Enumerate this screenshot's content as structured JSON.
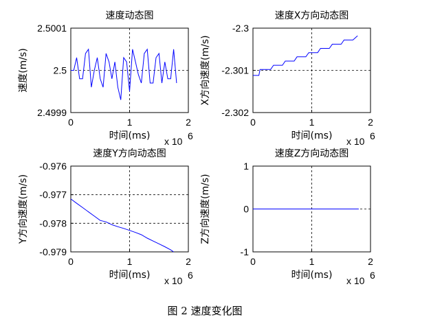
{
  "figure_caption": "图 2  速度变化图",
  "chart_data": [
    {
      "type": "line",
      "title": "速度动态图",
      "xlabel": "时间(ms)",
      "ylabel": "速度(m/s)",
      "x_exponent_label": "x 10",
      "x_exponent": "6",
      "xlim": [
        0,
        2
      ],
      "ylim": [
        2.4999,
        2.5001
      ],
      "xticks": [
        0,
        1,
        2
      ],
      "yticks": [
        2.4999,
        2.5,
        2.5001
      ],
      "ytick_labels": [
        "2.4999",
        "2.5",
        "2.5001"
      ],
      "grid": true,
      "series": [
        {
          "color": "#0000ff",
          "x": [
            0.0,
            0.05,
            0.1,
            0.15,
            0.2,
            0.25,
            0.3,
            0.35,
            0.4,
            0.45,
            0.5,
            0.55,
            0.6,
            0.65,
            0.7,
            0.75,
            0.8,
            0.85,
            0.9,
            0.95,
            1.0,
            1.05,
            1.1,
            1.15,
            1.2,
            1.25,
            1.3,
            1.35,
            1.4,
            1.45,
            1.5,
            1.55,
            1.6,
            1.65,
            1.7,
            1.75,
            1.8
          ],
          "values": [
            2.5,
            2.5,
            2.50003,
            2.49998,
            2.49998,
            2.50004,
            2.50005,
            2.49996,
            2.5,
            2.50003,
            2.49998,
            2.49996,
            2.50004,
            2.50002,
            2.49998,
            2.50002,
            2.49996,
            2.49993,
            2.50003,
            2.50002,
            2.49995,
            2.50005,
            2.50002,
            2.49999,
            2.49997,
            2.50004,
            2.50005,
            2.49997,
            2.49997,
            2.50003,
            2.50004,
            2.49997,
            2.50002,
            2.49998,
            2.49998,
            2.50005,
            2.49997
          ]
        }
      ]
    },
    {
      "type": "line",
      "title": "速度X方向动态图",
      "xlabel": "时间(ms)",
      "ylabel": "X方向速度(m/s)",
      "x_exponent_label": "x 10",
      "x_exponent": "6",
      "xlim": [
        0,
        2
      ],
      "ylim": [
        -2.302,
        -2.3
      ],
      "xticks": [
        0,
        1,
        2
      ],
      "yticks": [
        -2.302,
        -2.301,
        -2.3
      ],
      "ytick_labels": [
        "-2.302",
        "-2.301",
        "-2.3"
      ],
      "grid": true,
      "series": [
        {
          "color": "#0000ff",
          "x": [
            0.0,
            0.1,
            0.12,
            0.3,
            0.35,
            0.5,
            0.55,
            0.7,
            0.75,
            0.9,
            0.95,
            1.1,
            1.15,
            1.3,
            1.35,
            1.5,
            1.55,
            1.7,
            1.78
          ],
          "values": [
            -2.30112,
            -2.30112,
            -2.30098,
            -2.30098,
            -2.30088,
            -2.30088,
            -2.30078,
            -2.30078,
            -2.30068,
            -2.30068,
            -2.30058,
            -2.30058,
            -2.30048,
            -2.30048,
            -2.30038,
            -2.30038,
            -2.30028,
            -2.30028,
            -2.30018
          ]
        }
      ]
    },
    {
      "type": "line",
      "title": "速度Y方向动态图",
      "xlabel": "时间(ms)",
      "ylabel": "Y方向速度(m/s)",
      "x_exponent_label": "x 10",
      "x_exponent": "6",
      "xlim": [
        0,
        2
      ],
      "ylim": [
        -0.979,
        -0.976
      ],
      "xticks": [
        0,
        1,
        2
      ],
      "yticks": [
        -0.979,
        -0.978,
        -0.977,
        -0.976
      ],
      "ytick_labels": [
        "-0.979",
        "-0.978",
        "-0.977",
        "-0.976"
      ],
      "grid": true,
      "series": [
        {
          "color": "#0000ff",
          "x": [
            0.0,
            0.1,
            0.2,
            0.3,
            0.4,
            0.5,
            0.6,
            0.7,
            0.8,
            0.9,
            1.0,
            1.1,
            1.2,
            1.3,
            1.4,
            1.5,
            1.6,
            1.7,
            1.75
          ],
          "values": [
            -0.97715,
            -0.9773,
            -0.97745,
            -0.9776,
            -0.97775,
            -0.9779,
            -0.97795,
            -0.97805,
            -0.97812,
            -0.97818,
            -0.97825,
            -0.97832,
            -0.9784,
            -0.97852,
            -0.97862,
            -0.97872,
            -0.97882,
            -0.97893,
            -0.979
          ]
        }
      ]
    },
    {
      "type": "line",
      "title": "速度Z方向动态图",
      "xlabel": "时间(ms)",
      "ylabel": "Z方向速度(m/s)",
      "x_exponent_label": "x 10",
      "x_exponent": "6",
      "xlim": [
        0,
        2
      ],
      "ylim": [
        -1,
        1
      ],
      "xticks": [
        0,
        1,
        2
      ],
      "yticks": [
        -1,
        0,
        1
      ],
      "ytick_labels": [
        "-1",
        "0",
        "1"
      ],
      "grid": true,
      "series": [
        {
          "color": "#0000ff",
          "x": [
            0.0,
            1.8
          ],
          "values": [
            0,
            0
          ]
        }
      ]
    }
  ]
}
